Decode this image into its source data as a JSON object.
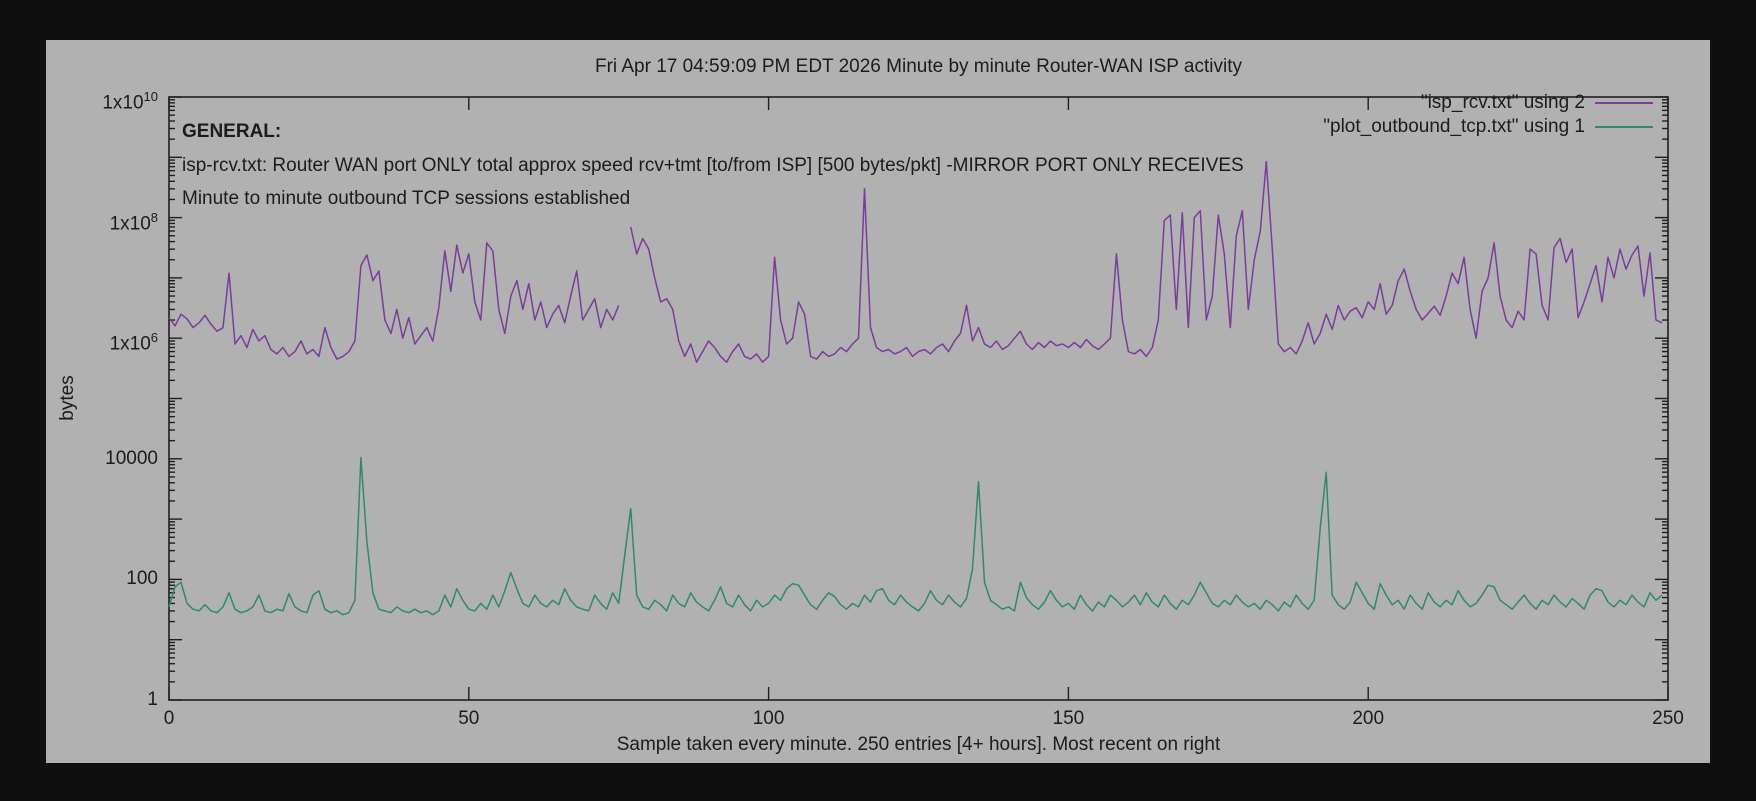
{
  "title": "Fri Apr 17 04:59:09 PM EDT 2026 Minute by minute Router-WAN ISP activity",
  "annotations": {
    "heading": "GENERAL:",
    "line1": "isp-rcv.txt: Router WAN port ONLY total approx speed rcv+tmt [to/from ISP] [500 bytes/pkt] -MIRROR PORT ONLY RECEIVES",
    "line2": "Minute to minute outbound TCP sessions established"
  },
  "legend": [
    {
      "label": "\"isp_rcv.txt\" using 2",
      "color": "#7b3c9d"
    },
    {
      "label": "\"plot_outbound_tcp.txt\" using 1",
      "color": "#2f8a6d"
    }
  ],
  "axes": {
    "ylabel": "bytes",
    "xlabel": "Sample taken every minute. 250 entries [4+ hours]. Most recent on right",
    "y_ticks": [
      {
        "base": "1x10",
        "sup": "10",
        "value": 10000000000.0
      },
      {
        "base": "1x10",
        "sup": "8",
        "value": 100000000.0
      },
      {
        "base": "1x10",
        "sup": "6",
        "value": 1000000.0
      },
      {
        "base": "10000",
        "sup": "",
        "value": 10000
      },
      {
        "base": "100",
        "sup": "",
        "value": 100
      },
      {
        "base": "1",
        "sup": "",
        "value": 1
      }
    ],
    "x_ticks": [
      0,
      50,
      100,
      150,
      200,
      250
    ]
  },
  "colors": {
    "background": "#0f0f0f",
    "panel": "#b1b1b1",
    "ink": "#1c1c1c",
    "frame": "#1f1f1f"
  },
  "chart_data": {
    "type": "line",
    "title": "Fri Apr 17 04:59:09 PM EDT 2026 Minute by minute Router-WAN ISP activity",
    "xlabel": "Sample taken every minute. 250 entries [4+ hours]. Most recent on right",
    "ylabel": "bytes",
    "y_scale": "log",
    "ylim": [
      1,
      10000000000.0
    ],
    "xlim": [
      0,
      250
    ],
    "grid": false,
    "legend_position": "top-right-inside",
    "series": [
      {
        "name": "\"isp_rcv.txt\" using 2",
        "color": "#7b3c9d",
        "values": [
          2200000.0,
          1600000.0,
          2500000.0,
          2100000.0,
          1500000.0,
          1800000.0,
          2400000.0,
          1700000.0,
          1300000.0,
          1500000.0,
          12000000.0,
          800000.0,
          1100000.0,
          700000.0,
          1400000.0,
          900000.0,
          1100000.0,
          650000.0,
          550000.0,
          700000.0,
          500000.0,
          600000.0,
          900000.0,
          550000.0,
          650000.0,
          500000.0,
          1500000.0,
          700000.0,
          450000.0,
          500000.0,
          600000.0,
          900000.0,
          16000000.0,
          24000000.0,
          9000000.0,
          13000000.0,
          2000000.0,
          1200000.0,
          3000000.0,
          1000000.0,
          2200000.0,
          800000.0,
          1100000.0,
          1500000.0,
          900000.0,
          3200000.0,
          28000000.0,
          6000000.0,
          35000000.0,
          12000000.0,
          25000000.0,
          4000000.0,
          2000000.0,
          38000000.0,
          28000000.0,
          3000000.0,
          1200000.0,
          5000000.0,
          9000000.0,
          3000000.0,
          8000000.0,
          2000000.0,
          4000000.0,
          1500000.0,
          2500000.0,
          3500000.0,
          1800000.0,
          5000000.0,
          13000000.0,
          2000000.0,
          3000000.0,
          4500000.0,
          1500000.0,
          3000000.0,
          2000000.0,
          3500000.0,
          null,
          70000000.0,
          25000000.0,
          45000000.0,
          30000000.0,
          10000000.0,
          4000000.0,
          4500000.0,
          3000000.0,
          900000.0,
          500000.0,
          800000.0,
          400000.0,
          600000.0,
          900000.0,
          700000.0,
          500000.0,
          400000.0,
          600000.0,
          800000.0,
          500000.0,
          450000.0,
          550000.0,
          400000.0,
          500000.0,
          22000000.0,
          2000000.0,
          800000.0,
          1000000.0,
          4000000.0,
          2500000.0,
          500000.0,
          450000.0,
          600000.0,
          500000.0,
          550000.0,
          700000.0,
          600000.0,
          800000.0,
          1000000.0,
          300000000.0,
          1500000.0,
          700000.0,
          600000.0,
          650000.0,
          550000.0,
          600000.0,
          700000.0,
          500000.0,
          600000.0,
          650000.0,
          550000.0,
          700000.0,
          800000.0,
          600000.0,
          900000.0,
          1200000.0,
          3500000.0,
          900000.0,
          1500000.0,
          800000.0,
          700000.0,
          900000.0,
          650000.0,
          750000.0,
          1000000.0,
          1300000.0,
          800000.0,
          650000.0,
          850000.0,
          700000.0,
          900000.0,
          750000.0,
          800000.0,
          700000.0,
          850000.0,
          700000.0,
          950000.0,
          750000.0,
          650000.0,
          800000.0,
          1000000.0,
          25000000.0,
          2000000.0,
          600000.0,
          550000.0,
          650000.0,
          500000.0,
          700000.0,
          2000000.0,
          90000000.0,
          110000000.0,
          3000000.0,
          120000000.0,
          1500000.0,
          100000000.0,
          130000000.0,
          2000000.0,
          5000000.0,
          110000000.0,
          25000000.0,
          1500000.0,
          50000000.0,
          130000000.0,
          3000000.0,
          20000000.0,
          60000000.0,
          850000000.0,
          30000000.0,
          800000.0,
          600000.0,
          700000.0,
          550000.0,
          900000.0,
          1800000.0,
          800000.0,
          1200000.0,
          2500000.0,
          1400000.0,
          3500000.0,
          2000000.0,
          2800000.0,
          3200000.0,
          2200000.0,
          4000000.0,
          3000000.0,
          8000000.0,
          2500000.0,
          3500000.0,
          9000000.0,
          14000000.0,
          6000000.0,
          3000000.0,
          2000000.0,
          2600000.0,
          3400000.0,
          2400000.0,
          5000000.0,
          12000000.0,
          8000000.0,
          22000000.0,
          3000000.0,
          1000000.0,
          6000000.0,
          10000000.0,
          38000000.0,
          5000000.0,
          2000000.0,
          1500000.0,
          2800000.0,
          2000000.0,
          30000000.0,
          25000000.0,
          3500000.0,
          2000000.0,
          32000000.0,
          45000000.0,
          18000000.0,
          30000000.0,
          2200000.0,
          4000000.0,
          8000000.0,
          16000000.0,
          4000000.0,
          22000000.0,
          10000000.0,
          30000000.0,
          14000000.0,
          24000000.0,
          34000000.0,
          5000000.0,
          26000000.0,
          2000000.0,
          1800000.0
        ]
      },
      {
        "name": "\"plot_outbound_tcp.txt\" using 1",
        "color": "#2f8a6d",
        "values": [
          35,
          75,
          90,
          40,
          32,
          30,
          38,
          30,
          28,
          35,
          60,
          32,
          28,
          30,
          35,
          55,
          30,
          28,
          32,
          30,
          58,
          35,
          30,
          28,
          55,
          65,
          32,
          28,
          30,
          26,
          28,
          45,
          10500,
          420,
          60,
          32,
          30,
          28,
          35,
          30,
          28,
          32,
          28,
          30,
          26,
          30,
          55,
          35,
          70,
          45,
          32,
          30,
          40,
          32,
          55,
          35,
          65,
          130,
          70,
          40,
          35,
          55,
          40,
          35,
          45,
          38,
          70,
          45,
          35,
          32,
          30,
          55,
          40,
          32,
          60,
          40,
          250,
          1500,
          55,
          35,
          32,
          45,
          38,
          30,
          55,
          40,
          35,
          60,
          42,
          35,
          30,
          45,
          75,
          40,
          35,
          55,
          38,
          30,
          45,
          35,
          40,
          55,
          45,
          70,
          85,
          80,
          55,
          38,
          32,
          45,
          60,
          52,
          38,
          32,
          40,
          35,
          55,
          42,
          65,
          70,
          45,
          38,
          55,
          42,
          35,
          30,
          40,
          65,
          45,
          38,
          55,
          42,
          35,
          48,
          150,
          4200,
          90,
          45,
          38,
          32,
          35,
          30,
          90,
          50,
          38,
          32,
          42,
          65,
          45,
          35,
          40,
          32,
          55,
          38,
          30,
          42,
          35,
          55,
          45,
          35,
          42,
          55,
          38,
          60,
          42,
          35,
          55,
          40,
          32,
          45,
          38,
          55,
          90,
          60,
          40,
          35,
          45,
          38,
          55,
          42,
          35,
          40,
          32,
          45,
          38,
          30,
          42,
          35,
          55,
          40,
          32,
          45,
          700,
          6000,
          55,
          38,
          32,
          42,
          90,
          60,
          40,
          32,
          85,
          55,
          38,
          45,
          32,
          55,
          40,
          32,
          60,
          42,
          35,
          45,
          38,
          65,
          45,
          35,
          40,
          55,
          80,
          75,
          45,
          38,
          32,
          42,
          55,
          40,
          32,
          45,
          38,
          55,
          42,
          35,
          48,
          40,
          32,
          55,
          70,
          65,
          42,
          35,
          45,
          38,
          55,
          42,
          35,
          60,
          45,
          55
        ]
      }
    ]
  }
}
